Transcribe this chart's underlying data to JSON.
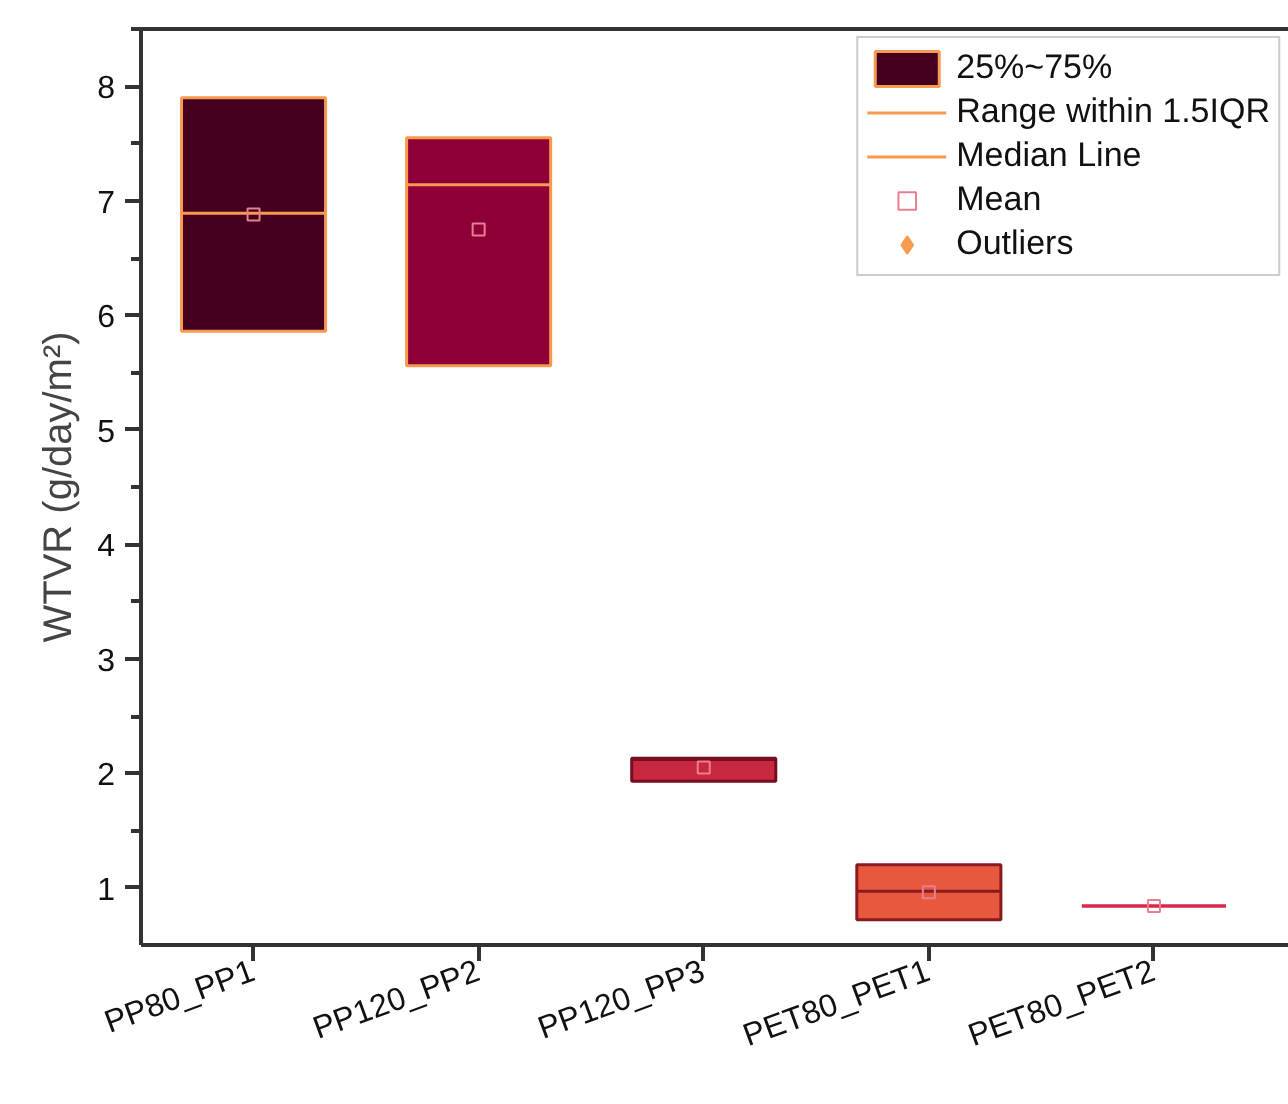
{
  "chart_data": {
    "type": "box",
    "ylabel": "WTVR (g/day/m²)",
    "categories": [
      "PP80_PP1",
      "PP120_PP2",
      "PP120_PP3",
      "PET80_PET1",
      "PET80_PET2"
    ],
    "series": [
      {
        "name": "25%~75%",
        "color": "#43001f",
        "colors": [
          "#43001f",
          "#8f0038",
          "#c8283f",
          "#e8583e",
          "#d8284a"
        ],
        "boxes": [
          {
            "low": 5.86,
            "q1": 5.86,
            "median": 6.89,
            "q3": 7.9,
            "high": 7.9
          },
          {
            "low": 5.56,
            "q1": 5.56,
            "median": 7.14,
            "q3": 7.55,
            "high": 7.55
          },
          {
            "low": 1.93,
            "q1": 1.93,
            "median": 2.12,
            "q3": 2.13,
            "high": 2.13
          },
          {
            "low": 0.72,
            "q1": 0.72,
            "median": 0.97,
            "q3": 1.2,
            "high": 1.2
          },
          {
            "low": 0.84,
            "q1": 0.84,
            "median": 0.84,
            "q3": 0.84,
            "high": 0.84
          }
        ]
      },
      {
        "name": "Mean",
        "type": "scatter",
        "marker": "square",
        "color": "#e87f8f",
        "x": [
          "PP80_PP1",
          "PP120_PP2",
          "PP120_PP3",
          "PET80_PET1",
          "PET80_PET2"
        ],
        "values": [
          6.88,
          6.75,
          2.05,
          0.96,
          0.84
        ]
      },
      {
        "name": "Outliers",
        "type": "scatter",
        "marker": "diamond",
        "color": "#f89a4f",
        "x": [
          "PP80_PP1",
          "PP120_PP2",
          "PP120_PP3",
          "PET80_PET1",
          "PET80_PET2"
        ],
        "values": [
          null,
          null,
          null,
          null,
          null
        ]
      }
    ],
    "ylim": [
      0.5,
      8.5
    ],
    "yticks": [
      1,
      2,
      3,
      4,
      5,
      6,
      7,
      8
    ],
    "grid": false,
    "legend": "top right",
    "annotations": [
      "Range within 1.5IQR",
      "Median Line"
    ]
  }
}
